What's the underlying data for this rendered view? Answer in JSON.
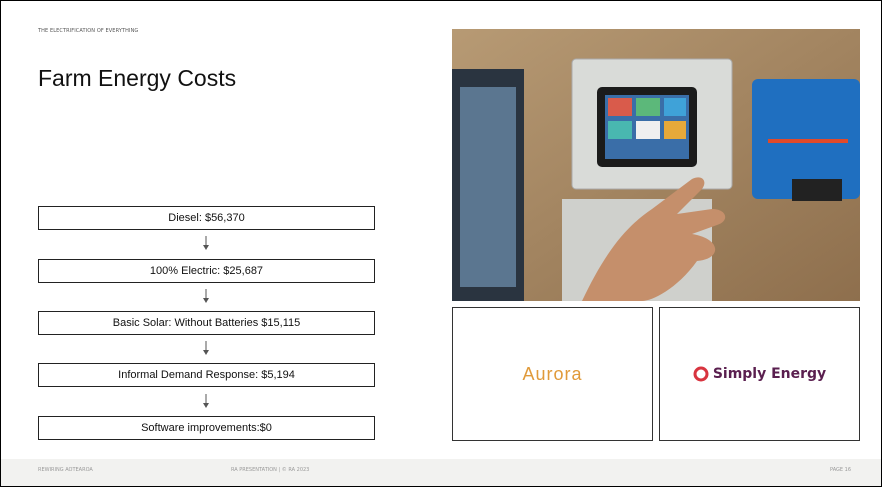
{
  "header": {
    "kicker": "THE ELECTRIFICATION OF EVERYTHING",
    "title": "Farm Energy Costs"
  },
  "flow": {
    "steps": [
      "Diesel: $56,370",
      "100% Electric: $25,687",
      "Basic Solar: Without Batteries $15,115",
      "Informal Demand Response: $5,194",
      "Software improvements:$0"
    ]
  },
  "logos": [
    "Aurora",
    "Simply Energy"
  ],
  "footer": {
    "left": "REWIRING AOTEAROA",
    "center": "RA PRESENTATION | © RA 2023",
    "right": "PAGE 16"
  }
}
